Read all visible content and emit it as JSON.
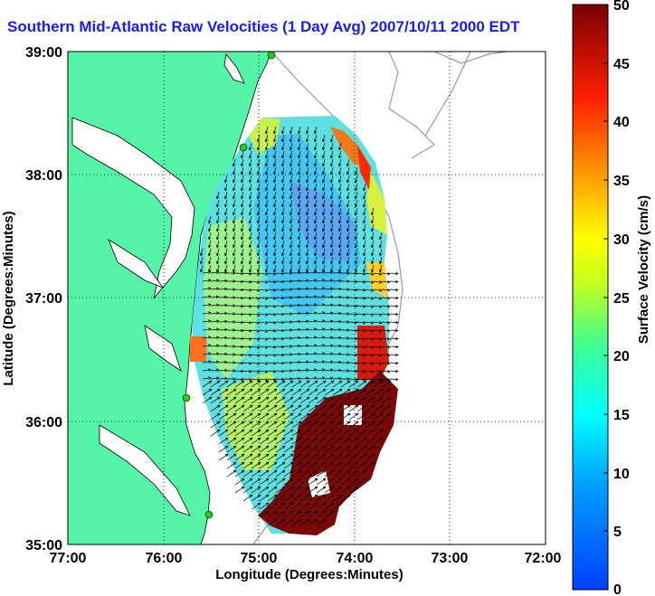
{
  "title": "Southern Mid-Atlantic Raw Velocities (1 Day Avg) 2007/10/11 2000 EDT",
  "map": {
    "x_label": "Longitude (Degrees:Minutes)",
    "y_label": "Latitude (Degrees:Minutes)",
    "x_ticks": [
      "77:00",
      "76:00",
      "75:00",
      "74:00",
      "73:00",
      "72:00"
    ],
    "y_ticks": [
      "39:00",
      "38:00",
      "37:00",
      "36:00",
      "35:00"
    ],
    "lon_range": [
      -77,
      -72
    ],
    "lat_range": [
      35,
      39
    ],
    "grid": "dotted",
    "land_color": "#55f5a8",
    "station_color": "#22cc22"
  },
  "colorbar": {
    "label": "Surface Velocity (cm/s)",
    "ticks": [
      "50",
      "45",
      "40",
      "35",
      "30",
      "25",
      "20",
      "15",
      "10",
      "5",
      "0"
    ],
    "range": [
      0,
      50
    ],
    "colormap": "jet"
  }
}
